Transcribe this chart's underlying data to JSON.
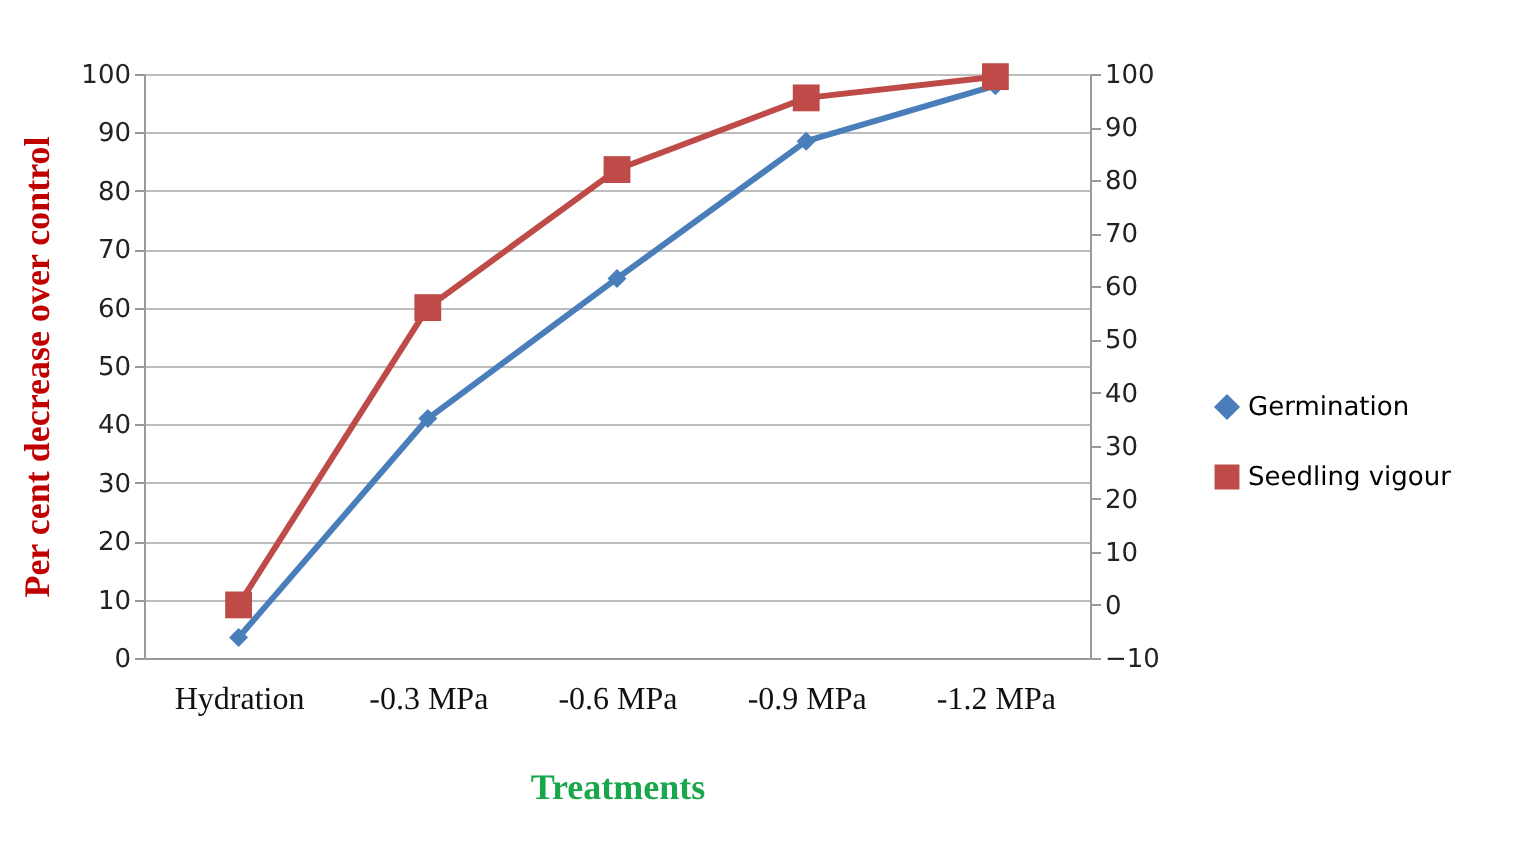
{
  "chart_data": {
    "type": "line",
    "xlabel": "Treatments",
    "ylabel": "Per cent  decrease over control",
    "categories": [
      "Hydration",
      "-0.3 MPa",
      "-0.6 MPa",
      "-0.9 MPa",
      "-1.2 MPa"
    ],
    "series": [
      {
        "name": "Germination",
        "color": "#4a7ebb",
        "marker": "diamond",
        "values": [
          3.5,
          41,
          65,
          88.5,
          98
        ]
      },
      {
        "name": "Seedling vigour",
        "color": "#be4b48",
        "marker": "square",
        "axis": "y2",
        "values": [
          0,
          56,
          82,
          95.5,
          99.5
        ]
      }
    ],
    "ylim": [
      0,
      100
    ],
    "yticks": [
      0,
      10,
      20,
      30,
      40,
      50,
      60,
      70,
      80,
      90,
      100
    ],
    "y2lim": [
      -10,
      100
    ],
    "y2ticks": [
      -10,
      0,
      10,
      20,
      30,
      40,
      50,
      60,
      70,
      80,
      90,
      100
    ],
    "grid": "y",
    "legend": "right",
    "line_style": "solid"
  }
}
